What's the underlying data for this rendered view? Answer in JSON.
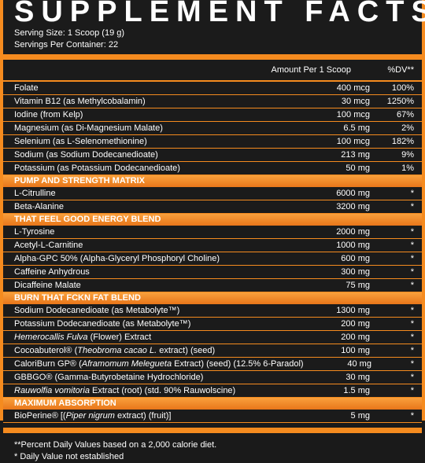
{
  "title": "SUPPLEMENT FACTS",
  "serving_size": "Serving Size: 1 Scoop (19 g)",
  "servings_per_container": "Servings Per Container: 22",
  "columns": {
    "amount": "Amount Per 1 Scoop",
    "dv": "%DV**"
  },
  "vitamins": [
    {
      "name": "Folate",
      "amount": "400 mcg",
      "dv": "100%"
    },
    {
      "name": "Vitamin B12 (as Methylcobalamin)",
      "amount": "30 mcg",
      "dv": "1250%"
    },
    {
      "name": "Iodine (from Kelp)",
      "amount": "100 mcg",
      "dv": "67%"
    },
    {
      "name": "Magnesium (as Di-Magnesium Malate)",
      "amount": "6.5 mg",
      "dv": "2%"
    },
    {
      "name": "Selenium (as L-Selenomethionine)",
      "amount": "100 mcg",
      "dv": "182%"
    },
    {
      "name": "Sodium (as Sodium Dodecanedioate)",
      "amount": "213 mg",
      "dv": "9%"
    },
    {
      "name": "Potassium (as Potassium Dodecanedioate)",
      "amount": "50 mg",
      "dv": "1%"
    }
  ],
  "sections": [
    {
      "header": "PUMP AND STRENGTH MATRIX",
      "items": [
        {
          "name": "L-Citrulline",
          "amount": "6000 mg",
          "dv": "*"
        },
        {
          "name": "Beta-Alanine",
          "amount": "3200 mg",
          "dv": "*"
        }
      ]
    },
    {
      "header": "THAT FEEL GOOD ENERGY BLEND",
      "items": [
        {
          "name": "L-Tyrosine",
          "amount": "2000 mg",
          "dv": "*"
        },
        {
          "name": "Acetyl-L-Carnitine",
          "amount": "1000 mg",
          "dv": "*"
        },
        {
          "name": "Alpha-GPC 50% (Alpha-Glyceryl Phosphoryl Choline)",
          "amount": "600 mg",
          "dv": "*"
        },
        {
          "name": "Caffeine Anhydrous",
          "amount": "300 mg",
          "dv": "*"
        },
        {
          "name": "Dicaffeine Malate",
          "amount": "75 mg",
          "dv": "*"
        }
      ]
    },
    {
      "header": "BURN THAT FCKN FAT BLEND",
      "items": [
        {
          "name": "Sodium Dodecanedioate (as Metabolyte™)",
          "amount": "1300 mg",
          "dv": "*"
        },
        {
          "name": "Potassium Dodecanedioate (as Metabolyte™)",
          "amount": "200 mg",
          "dv": "*"
        },
        {
          "name": "Hemerocallis Fulva (Flower) Extract",
          "amount": "200 mg",
          "dv": "*"
        },
        {
          "name": "Cocoabuterol® (Theobroma cacao L. extract) (seed)",
          "amount": "100 mg",
          "dv": "*"
        },
        {
          "name": "CaloriBurn GP® (Aframomum Melegueta Extract) (seed) (12.5% 6-Paradol)",
          "amount": "40 mg",
          "dv": "*"
        },
        {
          "name": "GBBGO® (Gamma-Butyrobetaine Hydrochloride)",
          "amount": "30 mg",
          "dv": "*"
        },
        {
          "name": "Rauwolfia vomitoria Extract (root) (std. 90% Rauwolscine)",
          "amount": "1.5 mg",
          "dv": "*"
        }
      ]
    },
    {
      "header": "MAXIMUM ABSORPTION",
      "items": [
        {
          "name": "BioPerine® [(Piper nigrum extract) (fruit)]",
          "amount": "5 mg",
          "dv": "*"
        }
      ]
    }
  ],
  "footnotes": [
    "**Percent Daily Values based on a 2,000 calorie diet.",
    "* Daily Value not established"
  ],
  "colors": {
    "accent": "#f58b1f",
    "background": "#1b1b1b",
    "text": "#ffffff"
  }
}
